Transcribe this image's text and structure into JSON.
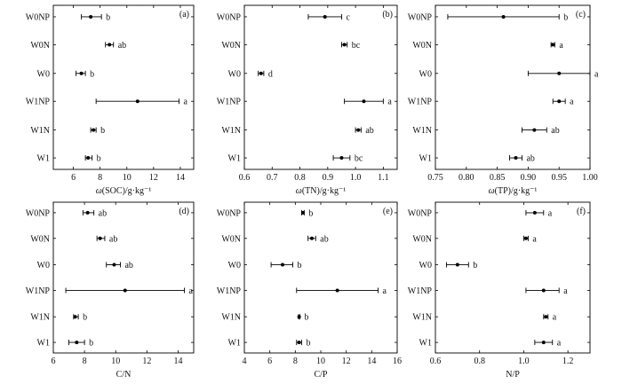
{
  "chart_data": [
    {
      "panel_label": "(a)",
      "type": "scatter",
      "xlabel_var": "ω",
      "xlabel_rest": "(SOC)/g·kg⁻¹",
      "categories": [
        "W0NP",
        "W0N",
        "W0",
        "W1NP",
        "W1N",
        "W1"
      ],
      "xlim": [
        4.5,
        15
      ],
      "xticks": [
        6,
        8,
        10,
        12,
        14
      ],
      "tick_labels": [
        "6",
        "8",
        "10",
        "12",
        "14"
      ],
      "mean": [
        7.3,
        8.7,
        6.6,
        10.8,
        7.5,
        7.1
      ],
      "err_low": [
        6.6,
        8.4,
        6.2,
        7.7,
        7.3,
        6.9
      ],
      "err_high": [
        8.1,
        9.0,
        6.9,
        13.9,
        7.7,
        7.4
      ],
      "letters": [
        "b",
        "ab",
        "b",
        "a",
        "b",
        "b"
      ]
    },
    {
      "panel_label": "(b)",
      "type": "scatter",
      "xlabel_var": "ω",
      "xlabel_rest": "(TN)/g·kg⁻¹",
      "categories": [
        "W0NP",
        "W0N",
        "W0",
        "W1NP",
        "W1N",
        "W1"
      ],
      "xlim": [
        0.6,
        1.15
      ],
      "xticks": [
        0.6,
        0.7,
        0.8,
        0.9,
        1.0,
        1.1
      ],
      "tick_labels": [
        "0.6",
        "0.7",
        "0.8",
        "0.9",
        "1.0",
        "1.1"
      ],
      "mean": [
        0.89,
        0.96,
        0.66,
        1.03,
        1.01,
        0.95
      ],
      "err_low": [
        0.83,
        0.95,
        0.65,
        0.96,
        1.0,
        0.92
      ],
      "err_high": [
        0.95,
        0.97,
        0.67,
        1.1,
        1.02,
        0.98
      ],
      "letters": [
        "c",
        "bc",
        "d",
        "a",
        "ab",
        "bc"
      ]
    },
    {
      "panel_label": "(c)",
      "type": "scatter",
      "xlabel_var": "ω",
      "xlabel_rest": "(TP)/g·kg⁻¹",
      "categories": [
        "W0NP",
        "W0N",
        "W0",
        "W1NP",
        "W1N",
        "W1"
      ],
      "xlim": [
        0.75,
        1.0
      ],
      "xticks": [
        0.75,
        0.8,
        0.85,
        0.9,
        0.95,
        1.0
      ],
      "tick_labels": [
        "0.75",
        "0.80",
        "0.85",
        "0.90",
        "0.95",
        "1.00"
      ],
      "mean": [
        0.86,
        0.94,
        0.95,
        0.95,
        0.91,
        0.88
      ],
      "err_low": [
        0.77,
        0.937,
        0.9,
        0.94,
        0.89,
        0.87
      ],
      "err_high": [
        0.95,
        0.943,
        1.0,
        0.96,
        0.93,
        0.89
      ],
      "letters": [
        "b",
        "a",
        "a",
        "a",
        "ab",
        "ab"
      ]
    },
    {
      "panel_label": "(d)",
      "type": "scatter",
      "xlabel": "C/N",
      "categories": [
        "W0NP",
        "W0N",
        "W0",
        "W1NP",
        "W1N",
        "W1"
      ],
      "xlim": [
        6,
        15
      ],
      "xticks": [
        6,
        8,
        10,
        12,
        14
      ],
      "tick_labels": [
        "6",
        "8",
        "10",
        "12",
        "14"
      ],
      "mean": [
        8.2,
        9.0,
        9.9,
        10.6,
        7.4,
        7.5
      ],
      "err_low": [
        7.9,
        8.8,
        9.4,
        6.8,
        7.3,
        7.0
      ],
      "err_high": [
        8.6,
        9.3,
        10.3,
        14.4,
        7.6,
        8.0
      ],
      "letters": [
        "ab",
        "ab",
        "ab",
        "a",
        "b",
        "b"
      ]
    },
    {
      "panel_label": "(e)",
      "type": "scatter",
      "xlabel": "C/P",
      "categories": [
        "W0NP",
        "W0N",
        "W0",
        "W1NP",
        "W1N",
        "W1"
      ],
      "xlim": [
        4,
        16
      ],
      "xticks": [
        4,
        6,
        8,
        10,
        12,
        14,
        16
      ],
      "tick_labels": [
        "4",
        "6",
        "8",
        "10",
        "12",
        "14",
        "16"
      ],
      "mean": [
        8.6,
        9.3,
        7.0,
        11.3,
        8.3,
        8.3
      ],
      "err_low": [
        8.5,
        9.0,
        6.1,
        8.1,
        8.25,
        8.1
      ],
      "err_high": [
        8.7,
        9.6,
        7.8,
        14.5,
        8.35,
        8.5
      ],
      "letters": [
        "b",
        "ab",
        "b",
        "a",
        "b",
        "b"
      ]
    },
    {
      "panel_label": "(f)",
      "type": "scatter",
      "xlabel": "N/P",
      "categories": [
        "W0NP",
        "W0N",
        "W0",
        "W1NP",
        "W1N",
        "W1"
      ],
      "xlim": [
        0.6,
        1.3
      ],
      "xticks": [
        0.6,
        0.8,
        1.0,
        1.2
      ],
      "tick_labels": [
        "0.6",
        "0.8",
        "1.0",
        "1.2"
      ],
      "mean": [
        1.05,
        1.01,
        0.7,
        1.09,
        1.1,
        1.09
      ],
      "err_low": [
        1.01,
        1.0,
        0.65,
        1.01,
        1.09,
        1.05
      ],
      "err_high": [
        1.09,
        1.02,
        0.75,
        1.16,
        1.11,
        1.13
      ],
      "letters": [
        "a",
        "a",
        "b",
        "a",
        "a",
        "a"
      ]
    }
  ]
}
